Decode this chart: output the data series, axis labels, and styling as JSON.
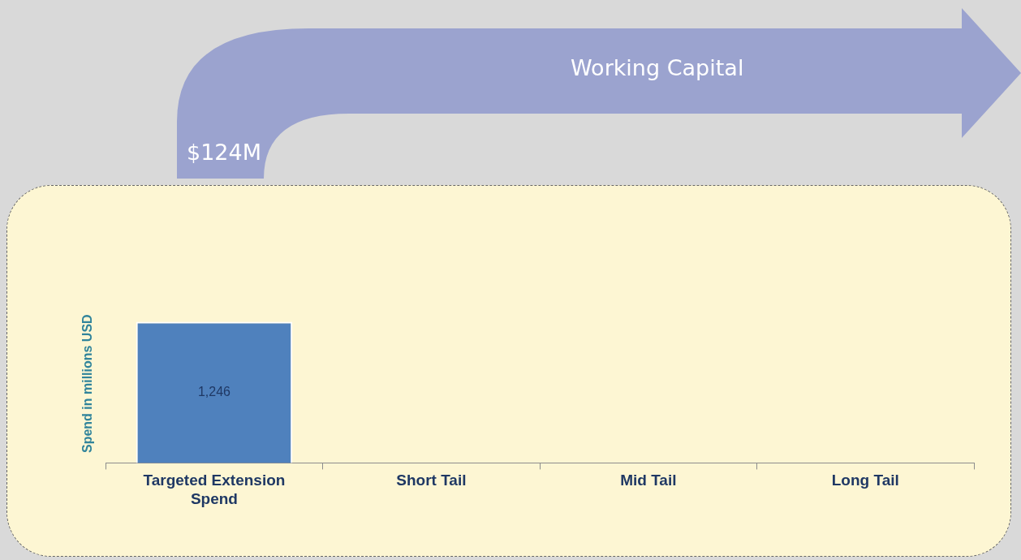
{
  "chart_data": {
    "type": "bar",
    "ylabel": "Spend in millions USD",
    "categories": [
      "Targeted Extension Spend",
      "Short Tail",
      "Mid Tail",
      "Long Tail"
    ],
    "values": [
      1246,
      null,
      null,
      null
    ],
    "color": "#4f81bd",
    "value_labels": [
      "1,246",
      null,
      null,
      null
    ],
    "tick_labels": "x",
    "grid": false,
    "legend": false,
    "annotations": [
      "Working Capital",
      "$124M"
    ]
  }
}
